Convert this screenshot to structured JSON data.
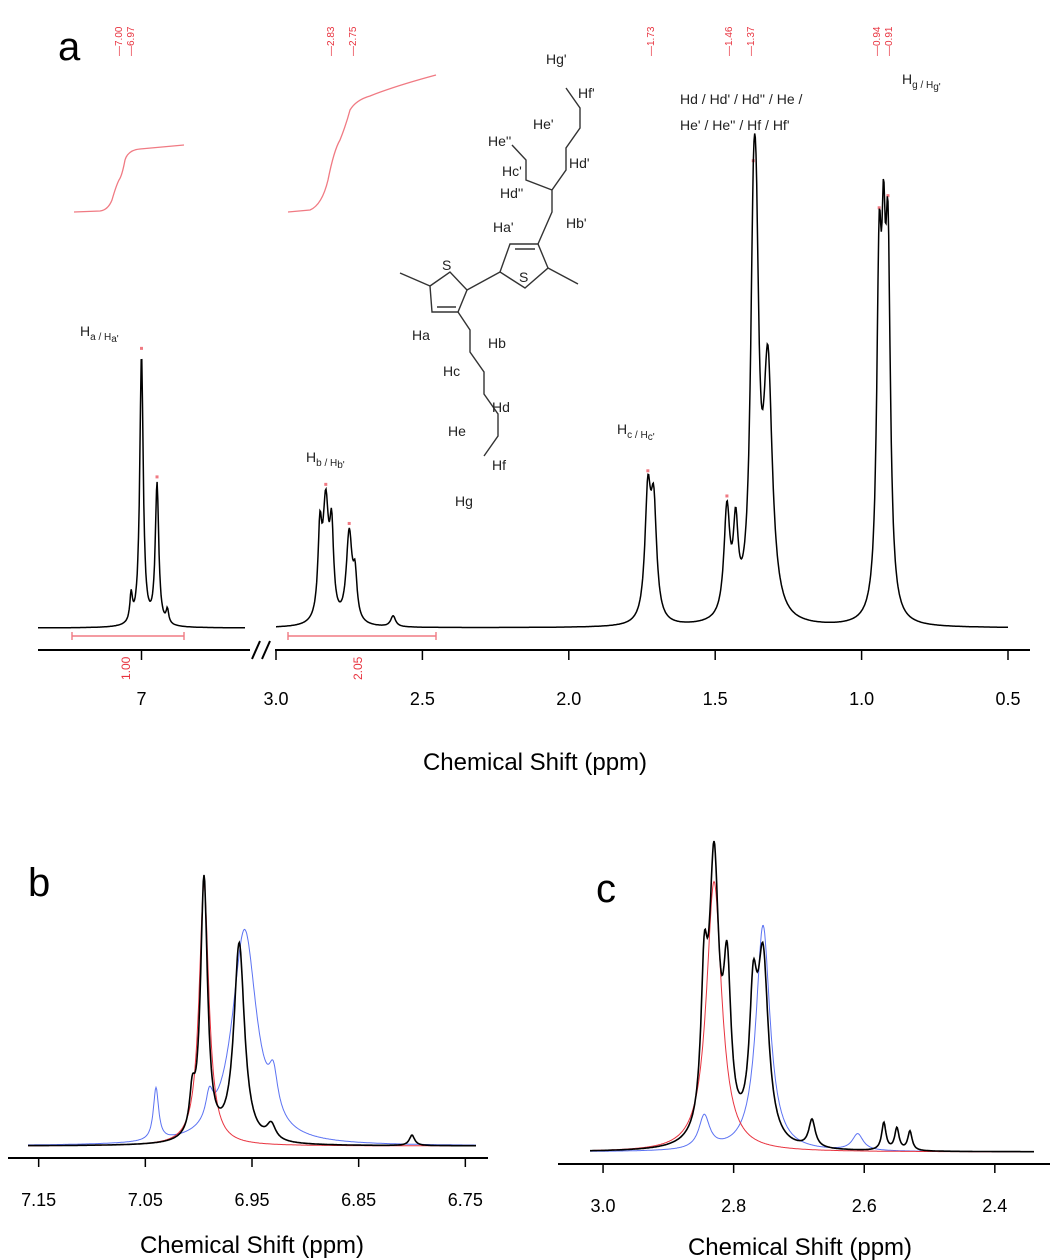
{
  "figure": {
    "panels": [
      "a",
      "b",
      "c"
    ],
    "xlabel": "Chemical Shift (ppm)"
  },
  "chart_data": [
    {
      "panel": "a",
      "type": "line",
      "xlabel": "Chemical Shift (ppm)",
      "x_axis_segments": [
        {
          "xlim": [
            7.2,
            6.8
          ],
          "ticks": [
            "7"
          ]
        },
        {
          "xlim": [
            3.0,
            0.5
          ],
          "ticks": [
            "3.0",
            "2.5",
            "2.0",
            "1.5",
            "1.0",
            "0.5"
          ]
        }
      ],
      "axis_break": "//",
      "peak_annotations": [
        "7.00",
        "6.97",
        "2.83",
        "2.75",
        "1.73",
        "1.46",
        "1.37",
        "0.94",
        "0.91"
      ],
      "integrals": [
        {
          "range": [
            7.15,
            6.85
          ],
          "value": "1.00"
        },
        {
          "range": [
            2.98,
            2.45
          ],
          "value": "2.05"
        }
      ],
      "assignments": [
        {
          "base": "H",
          "sub": "a / H",
          "sub2": "a'",
          "shift": 7.0
        },
        {
          "base": "H",
          "sub": "b / H",
          "sub2": "b'",
          "shift": 2.8
        },
        {
          "base": "H",
          "sub": "c / H",
          "sub2": "c'",
          "shift": 1.73
        },
        {
          "base": "H",
          "sub": "g / H",
          "sub2": "g'",
          "shift": 0.92
        }
      ],
      "assignment_multiline": [
        "Hd / Hd' / Hd'' / He /",
        "He' / He'' / Hf / Hf'"
      ],
      "structure_atoms": [
        "S",
        "S",
        "Ha",
        "Ha'",
        "Hb",
        "Hb'",
        "Hc",
        "Hc'",
        "Hd",
        "Hd'",
        "Hd''",
        "He",
        "He'",
        "He''",
        "Hf",
        "Hf'",
        "Hg",
        "Hg'"
      ],
      "series": [
        {
          "color": "#000000",
          "peaks": [
            [
              7.0,
              1.0,
              0.004
            ],
            [
              6.97,
              0.52,
              0.004
            ],
            [
              7.02,
              0.1,
              0.003
            ],
            [
              6.95,
              0.05,
              0.003
            ],
            [
              2.83,
              0.42,
              0.012
            ],
            [
              2.85,
              0.3,
              0.008
            ],
            [
              2.81,
              0.3,
              0.008
            ],
            [
              2.75,
              0.33,
              0.012
            ],
            [
              2.73,
              0.15,
              0.008
            ],
            [
              2.6,
              0.04,
              0.01
            ],
            [
              1.73,
              0.45,
              0.012
            ],
            [
              1.71,
              0.4,
              0.012
            ],
            [
              1.46,
              0.39,
              0.012
            ],
            [
              1.43,
              0.3,
              0.01
            ],
            [
              1.37,
              1.02,
              0.012
            ],
            [
              1.36,
              0.95,
              0.012
            ],
            [
              1.32,
              0.9,
              0.018
            ],
            [
              0.94,
              1.2,
              0.01
            ],
            [
              0.925,
              0.9,
              0.008
            ],
            [
              0.91,
              1.25,
              0.01
            ]
          ]
        }
      ]
    },
    {
      "panel": "b",
      "type": "line",
      "xlabel": "Chemical Shift (ppm)",
      "xlim": [
        7.16,
        6.74
      ],
      "ticks": [
        "7.15",
        "7.05",
        "6.95",
        "6.85",
        "6.75"
      ],
      "series": [
        {
          "color": "#000000",
          "peaks": [
            [
              6.995,
              1.0,
              0.004
            ],
            [
              6.962,
              0.76,
              0.006
            ],
            [
              7.006,
              0.14,
              0.003
            ],
            [
              6.932,
              0.06,
              0.005
            ],
            [
              6.8,
              0.04,
              0.003
            ]
          ]
        },
        {
          "color": "#e8333f",
          "peaks": [
            [
              6.995,
              1.0,
              0.0055
            ]
          ]
        },
        {
          "color": "#5b72f2",
          "peaks": [
            [
              6.957,
              0.82,
              0.014
            ],
            [
              7.04,
              0.2,
              0.003
            ],
            [
              6.99,
              0.1,
              0.004
            ],
            [
              6.93,
              0.15,
              0.005
            ]
          ]
        }
      ]
    },
    {
      "panel": "c",
      "type": "line",
      "xlabel": "Chemical Shift (ppm)",
      "xlim": [
        3.02,
        2.34
      ],
      "ticks": [
        "3.0",
        "2.8",
        "2.6",
        "2.4"
      ],
      "series": [
        {
          "color": "#000000",
          "peaks": [
            [
              2.83,
              0.98,
              0.009
            ],
            [
              2.845,
              0.5,
              0.006
            ],
            [
              2.81,
              0.55,
              0.007
            ],
            [
              2.755,
              0.65,
              0.01
            ],
            [
              2.77,
              0.45,
              0.007
            ],
            [
              2.57,
              0.1,
              0.004
            ],
            [
              2.55,
              0.08,
              0.004
            ],
            [
              2.53,
              0.07,
              0.004
            ],
            [
              2.68,
              0.1,
              0.006
            ]
          ]
        },
        {
          "color": "#e8333f",
          "peaks": [
            [
              2.83,
              0.98,
              0.014
            ]
          ]
        },
        {
          "color": "#5b72f2",
          "peaks": [
            [
              2.755,
              0.82,
              0.013
            ],
            [
              2.845,
              0.12,
              0.01
            ],
            [
              2.61,
              0.06,
              0.01
            ]
          ]
        }
      ]
    }
  ]
}
